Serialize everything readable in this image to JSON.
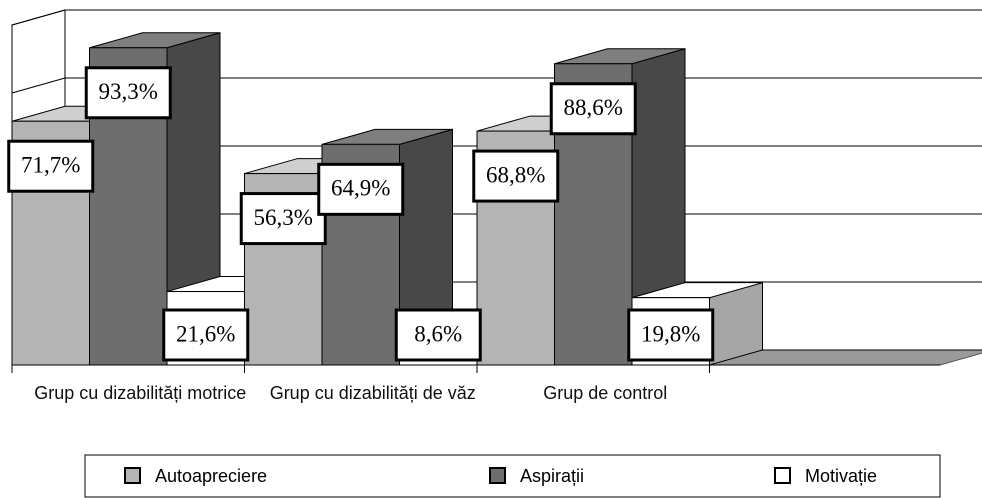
{
  "chart_data": {
    "type": "bar3d",
    "categories": [
      "Grup cu dizabilități motrice",
      "Grup cu dizabilități de văz",
      "Grup de control"
    ],
    "series": [
      {
        "name": "Autoapreciere",
        "color": "#b4b4b4",
        "values": [
          71.7,
          56.3,
          68.8
        ],
        "value_labels": [
          "71,7%",
          "56,3%",
          "68,8%"
        ]
      },
      {
        "name": "Aspirații",
        "color": "#6e6e6e",
        "values": [
          93.3,
          64.9,
          88.6
        ],
        "value_labels": [
          "93,3%",
          "64,9%",
          "88,6%"
        ]
      },
      {
        "name": "Motivație",
        "color": "#ffffff",
        "values": [
          21.6,
          8.6,
          19.8
        ],
        "value_labels": [
          "21,6%",
          "8,6%",
          "19,8%"
        ]
      }
    ],
    "ylim": [
      0,
      100
    ],
    "yticks": [
      0,
      20,
      40,
      60,
      80,
      100
    ],
    "grid": true,
    "legend": "bottom"
  }
}
